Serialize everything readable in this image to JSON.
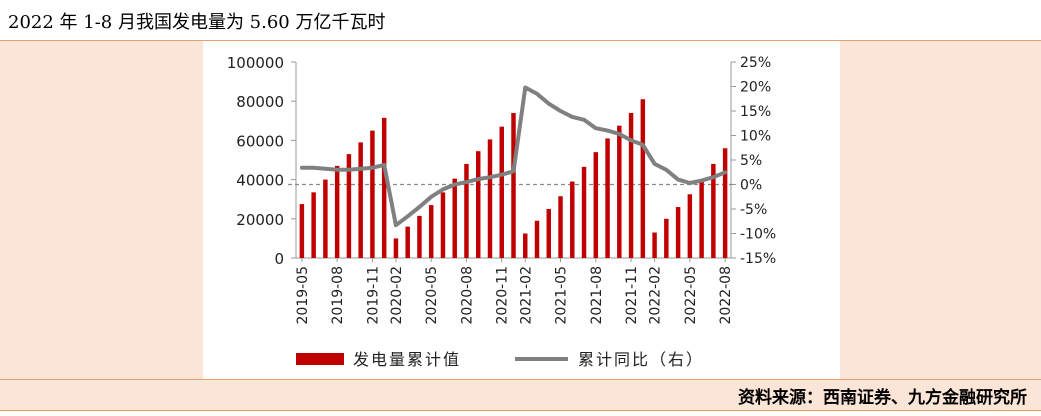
{
  "header": {
    "title": "2022 年 1-8 月我国发电量为 5.60 万亿千瓦时"
  },
  "footer": {
    "source": "资料来源：西南证券、九方金融研究所"
  },
  "colors": {
    "bar": "#c00000",
    "line": "#808080",
    "panel": "#fbe5d6",
    "dash": "#888888"
  },
  "chart_data": {
    "type": "bar",
    "title": "",
    "xlabel": "",
    "ylabel": "",
    "ylim": [
      0,
      100000
    ],
    "y2lim": [
      -15,
      25
    ],
    "yticks": [
      "0",
      "20000",
      "40000",
      "60000",
      "80000",
      "100000"
    ],
    "y2ticks": [
      "-15%",
      "-10%",
      "-5%",
      "0%",
      "5%",
      "10%",
      "15%",
      "20%",
      "25%"
    ],
    "xtick_labels": [
      "2019-05",
      "2019-08",
      "2019-11",
      "2020-02",
      "2020-05",
      "2020-08",
      "2020-11",
      "2021-02",
      "2021-05",
      "2021-08",
      "2021-11",
      "2022-02",
      "2022-05",
      "2022-08"
    ],
    "categories": [
      "2019-05",
      "2019-06",
      "2019-07",
      "2019-08",
      "2019-09",
      "2019-10",
      "2019-11",
      "2019-12",
      "2020-02",
      "2020-03",
      "2020-04",
      "2020-05",
      "2020-06",
      "2020-07",
      "2020-08",
      "2020-09",
      "2020-10",
      "2020-11",
      "2020-12",
      "2021-02",
      "2021-03",
      "2021-04",
      "2021-05",
      "2021-06",
      "2021-07",
      "2021-08",
      "2021-09",
      "2021-10",
      "2021-11",
      "2021-12",
      "2022-02",
      "2022-03",
      "2022-04",
      "2022-05",
      "2022-06",
      "2022-07",
      "2022-08"
    ],
    "series": [
      {
        "name": "发电量累计值",
        "type": "bar",
        "axis": "left",
        "values": [
          27500,
          33500,
          40000,
          47000,
          53000,
          59000,
          65000,
          71500,
          10000,
          16000,
          21500,
          27000,
          33500,
          40500,
          48000,
          54500,
          60500,
          67000,
          74000,
          12500,
          19000,
          25000,
          31500,
          39000,
          46500,
          54000,
          61000,
          67500,
          74000,
          81000,
          13000,
          20000,
          26000,
          32500,
          40000,
          48000,
          56000
        ]
      },
      {
        "name": "累计同比（右）",
        "type": "line",
        "axis": "right",
        "values": [
          3.4,
          3.4,
          3.2,
          3.0,
          3.0,
          3.2,
          3.4,
          4.0,
          -8.3,
          -6.5,
          -4.6,
          -2.5,
          -1.0,
          0.0,
          0.5,
          1.1,
          1.5,
          2.0,
          2.7,
          19.8,
          18.5,
          16.5,
          15.0,
          13.8,
          13.2,
          11.5,
          11.0,
          10.3,
          9.0,
          8.1,
          4.2,
          3.0,
          1.0,
          0.3,
          0.8,
          1.5,
          2.5
        ]
      }
    ],
    "reference_line": {
      "axis": "left",
      "value": 37500,
      "style": "dashed"
    },
    "grid": false,
    "legend": "bottom"
  }
}
